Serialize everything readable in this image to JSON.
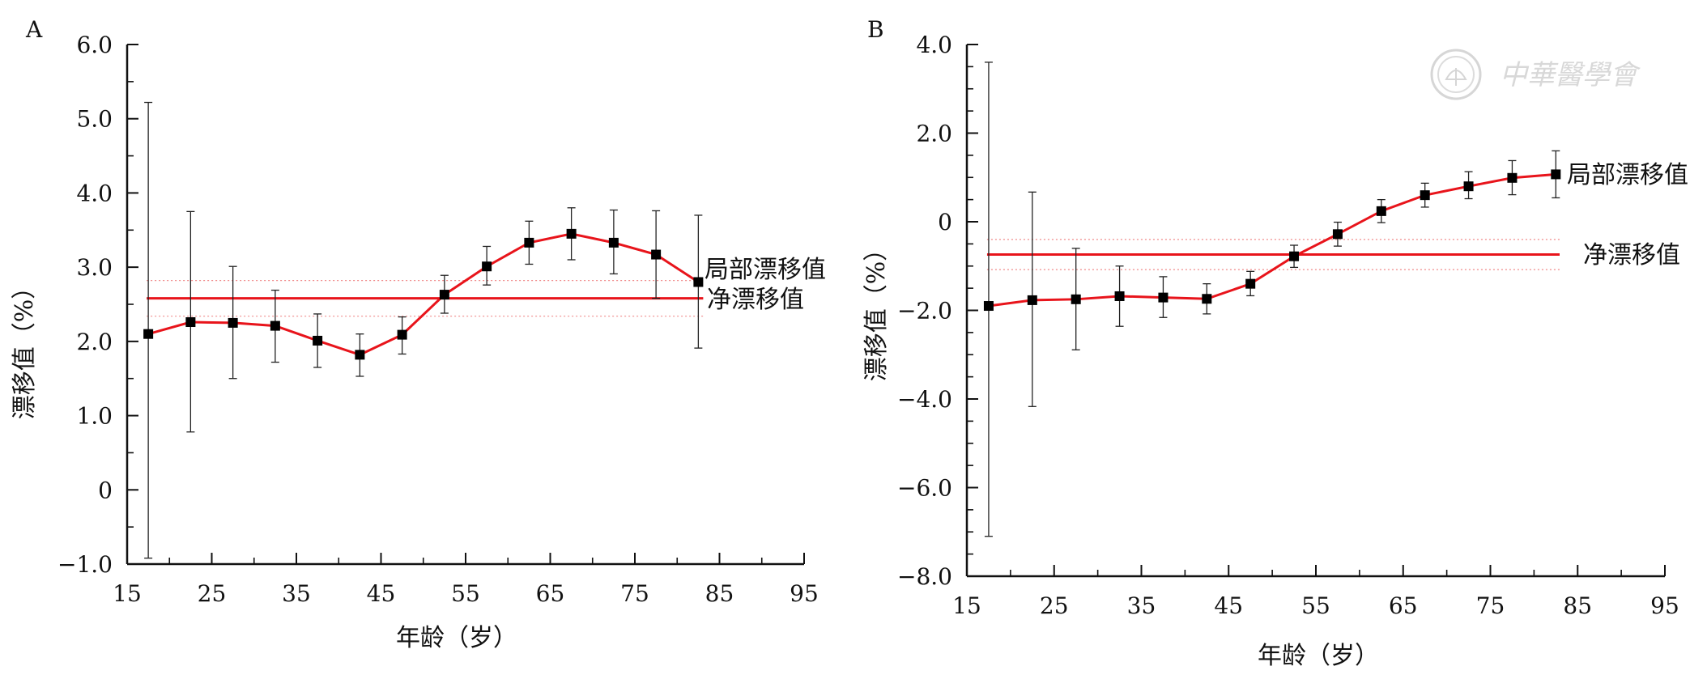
{
  "watermark": {
    "text": "中華醫學會"
  },
  "chart_data": [
    {
      "panel": "A",
      "type": "line",
      "title": "",
      "xlabel": "年龄（岁）",
      "ylabel": "漂移值（%）",
      "xlim": [
        15,
        95
      ],
      "ylim": [
        -1.0,
        6.0
      ],
      "xticks": [
        15,
        25,
        35,
        45,
        55,
        65,
        75,
        85,
        95
      ],
      "xtick_labels": [
        "15",
        "25",
        "35",
        "45",
        "55",
        "65",
        "75",
        "85",
        "95"
      ],
      "yticks": [
        -1.0,
        0,
        1.0,
        2.0,
        3.0,
        4.0,
        5.0,
        6.0
      ],
      "ytick_labels": [
        "−1.0",
        "0",
        "1.0",
        "2.0",
        "3.0",
        "4.0",
        "5.0",
        "6.0"
      ],
      "series": [
        {
          "name": "局部漂移值",
          "color": "#e8141b",
          "x": [
            17.5,
            22.5,
            27.5,
            32.5,
            37.5,
            42.5,
            47.5,
            52.5,
            57.5,
            62.5,
            67.5,
            72.5,
            77.5,
            82.5
          ],
          "y": [
            2.1,
            2.26,
            2.25,
            2.21,
            2.01,
            1.82,
            2.09,
            2.63,
            3.01,
            3.33,
            3.45,
            3.33,
            3.17,
            2.8
          ],
          "err_low": [
            -0.92,
            0.78,
            1.5,
            1.72,
            1.65,
            1.53,
            1.83,
            2.38,
            2.76,
            3.04,
            3.1,
            2.91,
            2.58,
            1.91
          ],
          "err_high": [
            5.22,
            3.75,
            3.01,
            2.69,
            2.37,
            2.1,
            2.33,
            2.89,
            3.28,
            3.62,
            3.8,
            3.77,
            3.76,
            3.7
          ]
        },
        {
          "name": "净漂移值",
          "color": "#e8141b",
          "type": "hline",
          "y": 2.58,
          "ci": [
            2.34,
            2.82
          ]
        }
      ]
    },
    {
      "panel": "B",
      "type": "line",
      "title": "",
      "xlabel": "年龄（岁）",
      "ylabel": "漂移值（%）",
      "xlim": [
        15,
        95
      ],
      "ylim": [
        -8.0,
        4.0
      ],
      "xticks": [
        15,
        25,
        35,
        45,
        55,
        65,
        75,
        85,
        95
      ],
      "xtick_labels": [
        "15",
        "25",
        "35",
        "45",
        "55",
        "65",
        "75",
        "85",
        "95"
      ],
      "yticks": [
        -8.0,
        -6.0,
        -4.0,
        -2.0,
        0,
        2.0,
        4.0
      ],
      "ytick_labels": [
        "−8.0",
        "−6.0",
        "−4.0",
        "−2.0",
        "0",
        "2.0",
        "4.0"
      ],
      "series": [
        {
          "name": "局部漂移值",
          "color": "#e8141b",
          "x": [
            17.5,
            22.5,
            27.5,
            32.5,
            37.5,
            42.5,
            47.5,
            52.5,
            57.5,
            62.5,
            67.5,
            72.5,
            77.5,
            82.5
          ],
          "y": [
            -1.9,
            -1.77,
            -1.75,
            -1.68,
            -1.71,
            -1.74,
            -1.4,
            -0.78,
            -0.28,
            0.24,
            0.6,
            0.8,
            0.99,
            1.07
          ],
          "err_low": [
            -7.1,
            -4.17,
            -2.89,
            -2.36,
            -2.16,
            -2.08,
            -1.67,
            -1.03,
            -0.55,
            -0.02,
            0.33,
            0.52,
            0.61,
            0.54
          ],
          "err_high": [
            3.6,
            0.67,
            -0.6,
            -1.0,
            -1.24,
            -1.4,
            -1.12,
            -0.53,
            -0.01,
            0.5,
            0.87,
            1.13,
            1.38,
            1.6
          ]
        },
        {
          "name": "净漂移值",
          "color": "#e8141b",
          "type": "hline",
          "y": -0.74,
          "ci": [
            -1.08,
            -0.4
          ]
        }
      ]
    }
  ]
}
